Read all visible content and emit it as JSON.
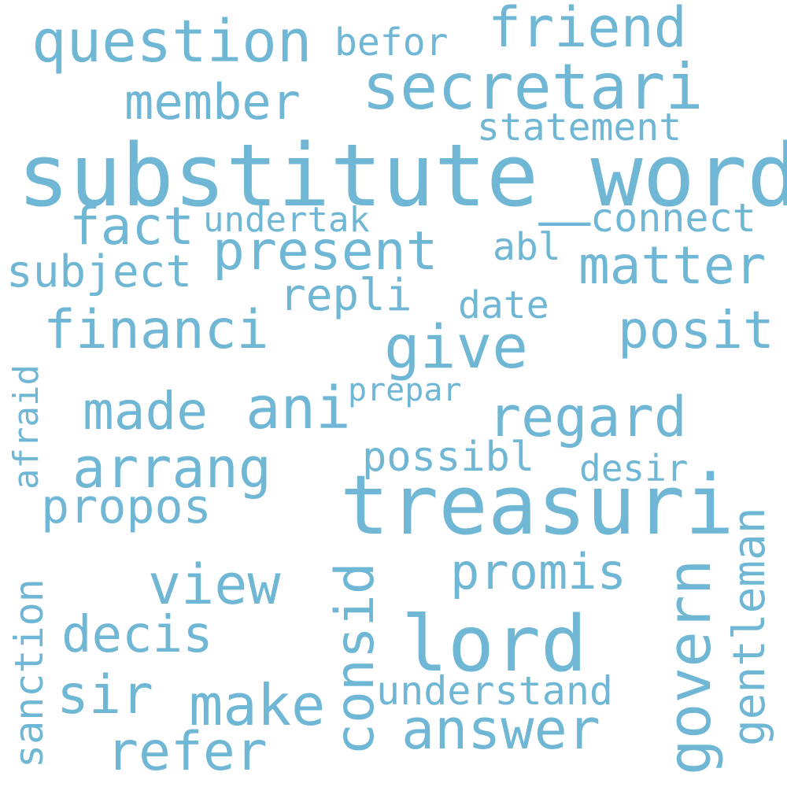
{
  "palette": {
    "background": "#ffffff",
    "word_color": "#6fb7d4"
  },
  "words": {
    "substitute_word": "substitute_word",
    "treasuri": "treasuri",
    "secretari": "secretari",
    "lord": "lord",
    "question": "question",
    "friend": "friend",
    "answer": "answer",
    "financi": "financi",
    "give": "give",
    "regard": "regard",
    "arrang": "arrang",
    "made": "made",
    "ani": "ani",
    "present": "present",
    "matter": "matter",
    "posit": "posit",
    "view": "view",
    "decis": "decis",
    "sir": "sir",
    "make": "make",
    "refer": "refer",
    "promis": "promis",
    "member": "member",
    "fact": "fact",
    "subject": "subject",
    "propos": "propos",
    "repli": "repli",
    "befor": "befor",
    "statement": "statement",
    "connect": "connect",
    "undertak": "undertak",
    "abl": "abl",
    "date": "date",
    "prepar": "prepar",
    "possibl": "possibl",
    "desir": "desir",
    "understand": "understand",
    "afraid": "afraid",
    "sanction": "sanction",
    "consid": "consid",
    "govern": "govern",
    "gentleman": "gentleman"
  }
}
